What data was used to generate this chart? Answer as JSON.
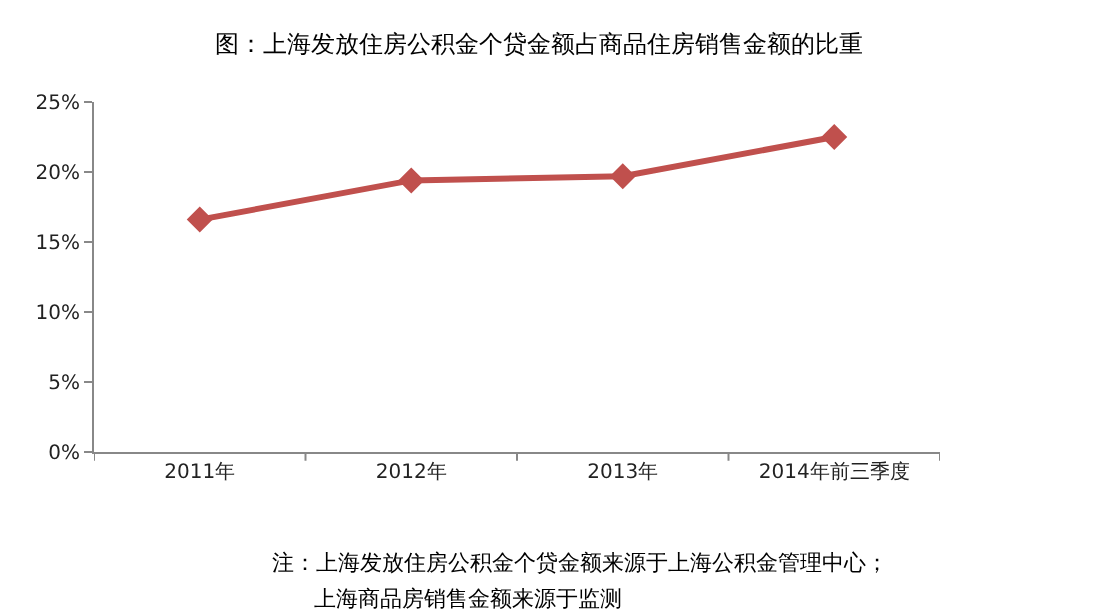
{
  "chart_data": {
    "type": "line",
    "title": "图：上海发放住房公积金个贷金额占商品住房销售金额的比重",
    "categories": [
      "2011年",
      "2012年",
      "2013年",
      "2014年前三季度"
    ],
    "series": [
      {
        "color": "#c0504d",
        "values": [
          16.6,
          19.4,
          19.7,
          22.5
        ]
      }
    ],
    "ylim": [
      0,
      25
    ],
    "yticks": [
      {
        "value": 0,
        "label": "0%"
      },
      {
        "value": 5,
        "label": "5%"
      },
      {
        "value": 10,
        "label": "10%"
      },
      {
        "value": 15,
        "label": "15%"
      },
      {
        "value": 20,
        "label": "20%"
      },
      {
        "value": 25,
        "label": "25%"
      }
    ],
    "marker": "diamond",
    "line_style": "solid",
    "grid": false,
    "annotations": [
      "注：上海发放住房公积金个贷金额来源于上海公积金管理中心；",
      "上海商品房销售金额来源于监测"
    ]
  }
}
